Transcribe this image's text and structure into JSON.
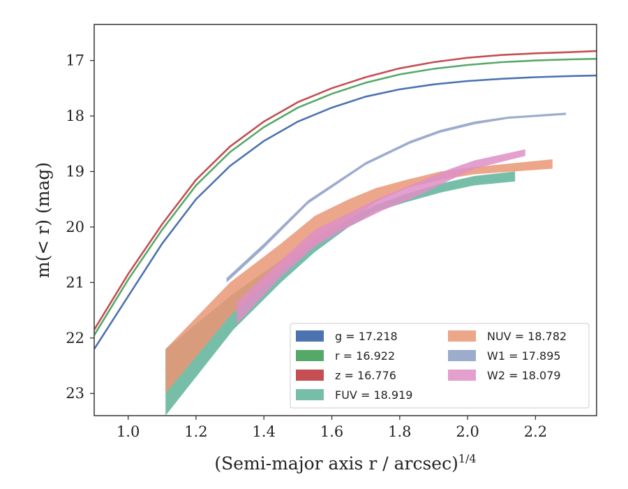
{
  "chart_data": {
    "type": "line",
    "xlabel": "(Semi-major axis r / arcsec)",
    "xlabel_exponent": "1/4",
    "ylabel": "m(< r) (mag)",
    "xlim": [
      0.9,
      2.38
    ],
    "ylim": [
      23.4,
      16.35
    ],
    "y_inverted": true,
    "x_ticks": [
      "1.0",
      "1.2",
      "1.4",
      "1.6",
      "1.8",
      "2.0",
      "2.2"
    ],
    "y_ticks": [
      "17",
      "18",
      "19",
      "20",
      "21",
      "22",
      "23"
    ],
    "grid": false,
    "legend_position": "lower-right",
    "series": [
      {
        "name": "g = 17.218",
        "color": "#4c72b0",
        "kind": "line",
        "x": [
          0.9,
          1.0,
          1.1,
          1.2,
          1.3,
          1.4,
          1.5,
          1.6,
          1.7,
          1.8,
          1.9,
          2.0,
          2.1,
          2.2,
          2.3,
          2.38
        ],
        "y": [
          22.2,
          21.25,
          20.3,
          19.5,
          18.9,
          18.45,
          18.1,
          17.85,
          17.65,
          17.52,
          17.43,
          17.37,
          17.33,
          17.3,
          17.28,
          17.27
        ]
      },
      {
        "name": "r = 16.922",
        "color": "#55a868",
        "kind": "line",
        "x": [
          0.9,
          1.0,
          1.1,
          1.2,
          1.3,
          1.4,
          1.5,
          1.6,
          1.7,
          1.8,
          1.9,
          2.0,
          2.1,
          2.2,
          2.3,
          2.38
        ],
        "y": [
          21.95,
          20.95,
          20.05,
          19.25,
          18.65,
          18.2,
          17.85,
          17.6,
          17.4,
          17.25,
          17.15,
          17.08,
          17.03,
          17.0,
          16.98,
          16.97
        ]
      },
      {
        "name": "z = 16.776",
        "color": "#c44e52",
        "kind": "line",
        "x": [
          0.9,
          1.0,
          1.1,
          1.2,
          1.3,
          1.4,
          1.5,
          1.6,
          1.7,
          1.8,
          1.9,
          2.0,
          2.1,
          2.2,
          2.3,
          2.38
        ],
        "y": [
          21.85,
          20.85,
          19.95,
          19.15,
          18.55,
          18.1,
          17.75,
          17.5,
          17.3,
          17.14,
          17.03,
          16.95,
          16.9,
          16.87,
          16.85,
          16.83
        ]
      },
      {
        "name": "FUV = 18.919",
        "color": "#5fb39a",
        "kind": "band",
        "x": [
          1.11,
          1.31,
          1.45,
          1.55,
          1.65,
          1.73,
          1.82,
          1.92,
          2.02,
          2.14
        ],
        "y_low": [
          22.2,
          21.2,
          20.6,
          20.2,
          19.85,
          19.6,
          19.4,
          19.22,
          19.08,
          19.0
        ],
        "y_high": [
          23.4,
          21.85,
          21.0,
          20.45,
          20.0,
          19.72,
          19.55,
          19.38,
          19.25,
          19.18
        ]
      },
      {
        "name": "NUV = 18.782",
        "color": "#e99675",
        "kind": "band",
        "x": [
          1.11,
          1.3,
          1.45,
          1.55,
          1.65,
          1.73,
          1.82,
          1.92,
          2.02,
          2.25
        ],
        "y_low": [
          22.2,
          21.0,
          20.3,
          19.8,
          19.5,
          19.3,
          19.15,
          19.0,
          18.92,
          18.78
        ],
        "y_high": [
          23.0,
          21.6,
          20.8,
          20.3,
          19.9,
          19.55,
          19.3,
          19.15,
          19.05,
          18.95
        ]
      },
      {
        "name": "W1 = 17.895",
        "color": "#8c9cc4",
        "kind": "band",
        "x": [
          1.29,
          1.4,
          1.53,
          1.7,
          1.83,
          1.92,
          2.02,
          2.12,
          2.29
        ],
        "y_low": [
          20.92,
          20.3,
          19.52,
          18.83,
          18.45,
          18.25,
          18.1,
          18.01,
          17.94
        ],
        "y_high": [
          21.0,
          20.38,
          19.58,
          18.88,
          18.5,
          18.3,
          18.15,
          18.05,
          17.98
        ]
      },
      {
        "name": "W2 = 18.079",
        "color": "#de8fc5",
        "kind": "band",
        "x": [
          1.32,
          1.45,
          1.55,
          1.65,
          1.75,
          1.85,
          1.95,
          2.02,
          2.17
        ],
        "y_low": [
          21.35,
          20.6,
          20.05,
          19.75,
          19.45,
          19.2,
          18.95,
          18.8,
          18.6
        ],
        "y_high": [
          21.75,
          20.9,
          20.35,
          20.0,
          19.7,
          19.45,
          19.15,
          18.95,
          18.72
        ]
      }
    ]
  }
}
